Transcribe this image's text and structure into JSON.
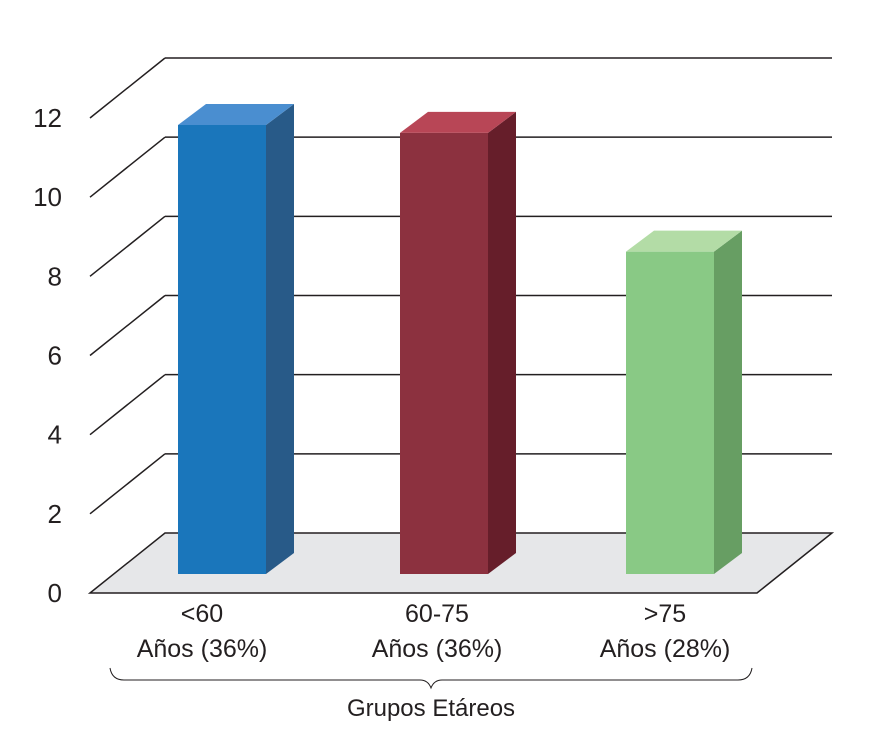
{
  "chart_data": {
    "type": "bar",
    "title": "",
    "xlabel": "Grupos Etáreos",
    "ylabel": "",
    "ylim": [
      0,
      12
    ],
    "yticks": [
      0,
      2,
      4,
      6,
      8,
      10,
      12
    ],
    "grid": true,
    "style": "3d",
    "categories": [
      [
        "<60",
        "Años (36%)"
      ],
      [
        "60-75",
        "Años (36%)"
      ],
      [
        ">75",
        "Años (28%)"
      ]
    ],
    "values": [
      12,
      11.8,
      8.8
    ],
    "colors": [
      {
        "front": "#1a76bb",
        "side": "#285a88",
        "top": "#4a8ed0"
      },
      {
        "front": "#8c313f",
        "side": "#661e2a",
        "top": "#b84656"
      },
      {
        "front": "#89c985",
        "side": "#679e63",
        "top": "#b3dca6"
      }
    ],
    "floor_color": "#e6e7e9"
  }
}
